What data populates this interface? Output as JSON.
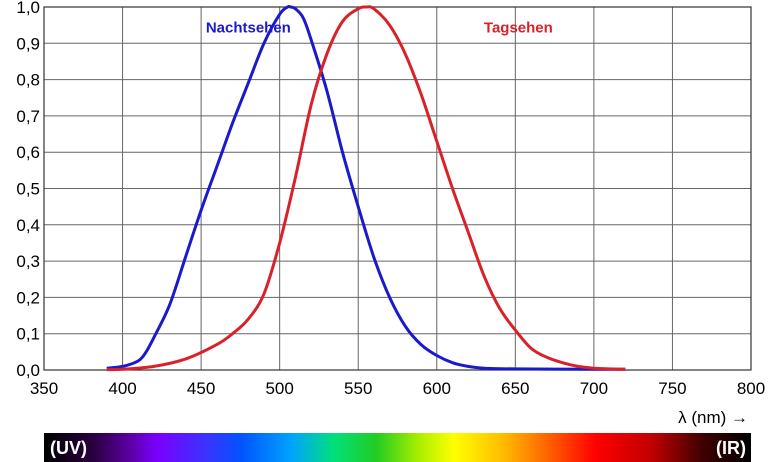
{
  "chart_data": {
    "type": "line",
    "title": "",
    "xlabel": "λ (nm) →",
    "ylabel": "",
    "xlim": [
      350,
      800
    ],
    "ylim": [
      0,
      1
    ],
    "grid": true,
    "x_ticks": [
      350,
      400,
      450,
      500,
      550,
      600,
      650,
      700,
      750,
      800
    ],
    "x_tick_labels": [
      "350",
      "400",
      "450",
      "500",
      "550",
      "600",
      "650",
      "700",
      "750",
      "800"
    ],
    "y_ticks": [
      0,
      0.1,
      0.2,
      0.3,
      0.4,
      0.5,
      0.6,
      0.7,
      0.8,
      0.9,
      1.0
    ],
    "y_tick_labels": [
      "0,0",
      "0,1",
      "0,2",
      "0,3",
      "0,4",
      "0,5",
      "0,6",
      "0,7",
      "0,8",
      "0,9",
      "1,0"
    ],
    "series": [
      {
        "name": "Nachtsehen",
        "color": "#1a1acc",
        "x": [
          390,
          400,
          410,
          415,
          420,
          430,
          440,
          450,
          460,
          470,
          480,
          490,
          500,
          505,
          507,
          510,
          515,
          520,
          530,
          540,
          550,
          560,
          570,
          580,
          590,
          600,
          610,
          620,
          630,
          650,
          700,
          720
        ],
        "y": [
          0.005,
          0.01,
          0.025,
          0.05,
          0.09,
          0.18,
          0.31,
          0.44,
          0.56,
          0.68,
          0.79,
          0.9,
          0.98,
          1.0,
          1.0,
          0.995,
          0.97,
          0.91,
          0.77,
          0.6,
          0.45,
          0.31,
          0.2,
          0.12,
          0.07,
          0.04,
          0.02,
          0.01,
          0.005,
          0.003,
          0.002,
          0.002
        ]
      },
      {
        "name": "Tagsehen",
        "color": "#d9212a",
        "x": [
          390,
          400,
          420,
          440,
          460,
          470,
          480,
          490,
          500,
          510,
          520,
          530,
          540,
          550,
          555,
          560,
          570,
          580,
          590,
          600,
          610,
          620,
          630,
          640,
          650,
          660,
          670,
          680,
          690,
          700,
          710,
          720
        ],
        "y": [
          0.001,
          0.002,
          0.01,
          0.03,
          0.07,
          0.1,
          0.14,
          0.21,
          0.35,
          0.53,
          0.73,
          0.87,
          0.96,
          0.995,
          1.0,
          0.995,
          0.95,
          0.87,
          0.76,
          0.63,
          0.5,
          0.38,
          0.26,
          0.17,
          0.11,
          0.06,
          0.035,
          0.02,
          0.01,
          0.005,
          0.003,
          0.002
        ]
      }
    ],
    "annotations": [
      {
        "text": "Nachtsehen",
        "x": 453,
        "y": 0.93,
        "series": 0
      },
      {
        "text": "Tagsehen",
        "x": 630,
        "y": 0.93,
        "series": 1
      }
    ],
    "spectrum_bar": {
      "left_label": "(UV)",
      "right_label": "(IR)"
    }
  }
}
